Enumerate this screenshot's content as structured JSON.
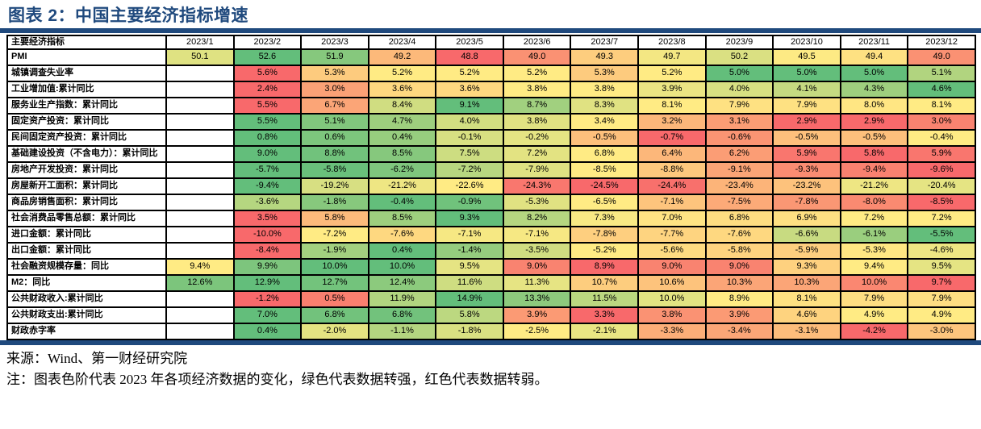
{
  "title": "图表 2：中国主要经济指标增速",
  "footer": {
    "source": "来源：Wind、第一财经研究院",
    "note": "注：图表色阶代表 2023 年各项经济数据的变化，绿色代表数据转强，红色代表数据转弱。"
  },
  "colors": {
    "accent": "#1F497D",
    "border": "#000000",
    "scale_min_red": "#F8696B",
    "scale_mid_yellow": "#FFEB84",
    "scale_max_green": "#63BE7B"
  },
  "chart_data": {
    "type": "heatmap",
    "title": "图表 2：中国主要经济指标增速",
    "corner_header": "主要经济指标",
    "columns": [
      "2023/1",
      "2023/2",
      "2023/3",
      "2023/4",
      "2023/5",
      "2023/6",
      "2023/7",
      "2023/8",
      "2023/9",
      "2023/10",
      "2023/11",
      "2023/12"
    ],
    "color_scale_note": "per-row 3-color scale: min=red #F8696B, median=yellow #FFEB84, max=green #63BE7B; invert=true means lower value is greener",
    "rows": [
      {
        "label": "PMI",
        "suffix": "",
        "invert": false,
        "values": [
          50.1,
          52.6,
          51.9,
          49.2,
          48.8,
          49.0,
          49.3,
          49.7,
          50.2,
          49.5,
          49.4,
          49.0
        ]
      },
      {
        "label": "城镇调查失业率",
        "suffix": "%",
        "invert": true,
        "values": [
          null,
          5.6,
          5.3,
          5.2,
          5.2,
          5.2,
          5.3,
          5.2,
          5.0,
          5.0,
          5.0,
          5.1
        ]
      },
      {
        "label": "工业增加值:累计同比",
        "suffix": "%",
        "invert": false,
        "values": [
          null,
          2.4,
          3.0,
          3.6,
          3.6,
          3.8,
          3.8,
          3.9,
          4.0,
          4.1,
          4.3,
          4.6
        ]
      },
      {
        "label": "服务业生产指数：累计同比",
        "suffix": "%",
        "invert": false,
        "values": [
          null,
          5.5,
          6.7,
          8.4,
          9.1,
          8.7,
          8.3,
          8.1,
          7.9,
          7.9,
          8.0,
          8.1
        ]
      },
      {
        "label": "固定资产投资：累计同比",
        "suffix": "%",
        "invert": false,
        "values": [
          null,
          5.5,
          5.1,
          4.7,
          4.0,
          3.8,
          3.4,
          3.2,
          3.1,
          2.9,
          2.9,
          3.0
        ]
      },
      {
        "label": "民间固定资产投资：累计同比",
        "suffix": "%",
        "invert": false,
        "values": [
          null,
          0.8,
          0.6,
          0.4,
          -0.1,
          -0.2,
          -0.5,
          -0.7,
          -0.6,
          -0.5,
          -0.5,
          -0.4
        ]
      },
      {
        "label": "基础建设投资（不含电力）：累计同比",
        "suffix": "%",
        "invert": false,
        "values": [
          null,
          9.0,
          8.8,
          8.5,
          7.5,
          7.2,
          6.8,
          6.4,
          6.2,
          5.9,
          5.8,
          5.9
        ]
      },
      {
        "label": "房地产开发投资：累计同比",
        "suffix": "%",
        "invert": false,
        "values": [
          null,
          -5.7,
          -5.8,
          -6.2,
          -7.2,
          -7.9,
          -8.5,
          -8.8,
          -9.1,
          -9.3,
          -9.4,
          -9.6
        ]
      },
      {
        "label": "房屋新开工面积：累计同比",
        "suffix": "%",
        "invert": false,
        "values": [
          null,
          -9.4,
          -19.2,
          -21.2,
          -22.6,
          -24.3,
          -24.5,
          -24.4,
          -23.4,
          -23.2,
          -21.2,
          -20.4
        ]
      },
      {
        "label": "商品房销售面积：累计同比",
        "suffix": "%",
        "invert": false,
        "values": [
          null,
          -3.6,
          -1.8,
          -0.4,
          -0.9,
          -5.3,
          -6.5,
          -7.1,
          -7.5,
          -7.8,
          -8.0,
          -8.5
        ]
      },
      {
        "label": "社会消费品零售总额：累计同比",
        "suffix": "%",
        "invert": false,
        "values": [
          null,
          3.5,
          5.8,
          8.5,
          9.3,
          8.2,
          7.3,
          7.0,
          6.8,
          6.9,
          7.2,
          7.2
        ]
      },
      {
        "label": "进口金额：累计同比",
        "suffix": "%",
        "invert": false,
        "values": [
          null,
          -10.0,
          -7.2,
          -7.6,
          -7.1,
          -7.1,
          -7.8,
          -7.7,
          -7.6,
          -6.6,
          -6.1,
          -5.5
        ]
      },
      {
        "label": "出口金额：累计同比",
        "suffix": "%",
        "invert": false,
        "values": [
          null,
          -8.4,
          -1.9,
          0.4,
          -1.4,
          -3.5,
          -5.2,
          -5.6,
          -5.8,
          -5.9,
          -5.3,
          -4.6
        ]
      },
      {
        "label": "社会融资规模存量：同比",
        "suffix": "%",
        "invert": false,
        "values": [
          9.4,
          9.9,
          10.0,
          10.0,
          9.5,
          9.0,
          8.9,
          9.0,
          9.0,
          9.3,
          9.4,
          9.5
        ]
      },
      {
        "label": "M2：同比",
        "suffix": "%",
        "invert": false,
        "values": [
          12.6,
          12.9,
          12.7,
          12.4,
          11.6,
          11.3,
          10.7,
          10.6,
          10.3,
          10.3,
          10.0,
          9.7
        ]
      },
      {
        "label": "公共财政收入:累计同比",
        "suffix": "%",
        "invert": false,
        "values": [
          null,
          -1.2,
          0.5,
          11.9,
          14.9,
          13.3,
          11.5,
          10.0,
          8.9,
          8.1,
          7.9,
          7.9
        ]
      },
      {
        "label": "公共财政支出:累计同比",
        "suffix": "%",
        "invert": false,
        "values": [
          null,
          7.0,
          6.8,
          6.8,
          5.8,
          3.9,
          3.3,
          3.8,
          3.9,
          4.6,
          4.9,
          4.9
        ]
      },
      {
        "label": "财政赤字率",
        "suffix": "%",
        "invert": false,
        "values": [
          null,
          0.4,
          -2.0,
          -1.1,
          -1.8,
          -2.5,
          -2.1,
          -3.3,
          -3.4,
          -3.1,
          -4.2,
          -3.0
        ]
      }
    ]
  }
}
